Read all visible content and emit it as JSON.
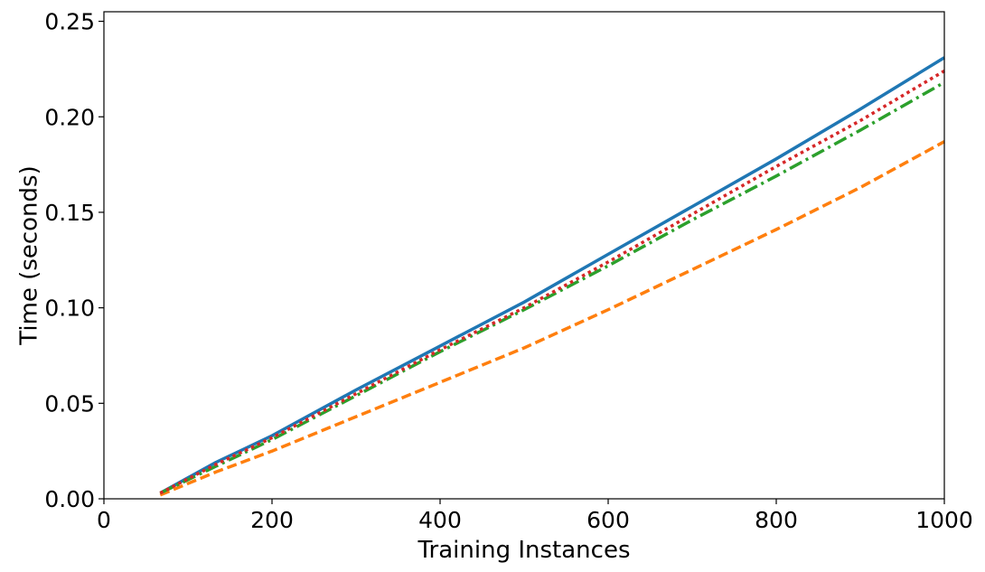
{
  "chart_data": {
    "type": "line",
    "title": "",
    "xlabel": "Training Instances",
    "ylabel": "Time (seconds)",
    "xlim": [
      0,
      1000
    ],
    "ylim": [
      0,
      0.255
    ],
    "xticks": [
      0,
      200,
      400,
      600,
      800,
      1000
    ],
    "xtick_labels": [
      "0",
      "200",
      "400",
      "600",
      "800",
      "1000"
    ],
    "yticks": [
      0.0,
      0.05,
      0.1,
      0.15,
      0.2,
      0.25
    ],
    "ytick_labels": [
      "0.00",
      "0.05",
      "0.10",
      "0.15",
      "0.20",
      "0.25"
    ],
    "grid": false,
    "legend": "none",
    "series": [
      {
        "color": "#1f77b4",
        "style": "solid",
        "x": [
          67,
          133,
          200,
          300,
          400,
          500,
          600,
          700,
          800,
          900,
          1000
        ],
        "y": [
          0.003,
          0.019,
          0.033,
          0.057,
          0.08,
          0.103,
          0.128,
          0.153,
          0.178,
          0.204,
          0.231
        ]
      },
      {
        "color": "#ff7f0e",
        "style": "dashed",
        "x": [
          67,
          133,
          200,
          300,
          400,
          500,
          600,
          700,
          800,
          900,
          1000
        ],
        "y": [
          0.002,
          0.014,
          0.025,
          0.043,
          0.061,
          0.079,
          0.099,
          0.12,
          0.141,
          0.163,
          0.187
        ]
      },
      {
        "color": "#2ca02c",
        "style": "dashdot",
        "x": [
          67,
          133,
          200,
          300,
          400,
          500,
          600,
          700,
          800,
          900,
          1000
        ],
        "y": [
          0.003,
          0.017,
          0.031,
          0.054,
          0.077,
          0.099,
          0.122,
          0.146,
          0.169,
          0.193,
          0.218
        ]
      },
      {
        "color": "#d62728",
        "style": "dotted",
        "x": [
          67,
          133,
          200,
          300,
          400,
          500,
          600,
          700,
          800,
          900,
          1000
        ],
        "y": [
          0.003,
          0.018,
          0.032,
          0.055,
          0.078,
          0.1,
          0.124,
          0.149,
          0.174,
          0.198,
          0.224
        ]
      }
    ]
  }
}
